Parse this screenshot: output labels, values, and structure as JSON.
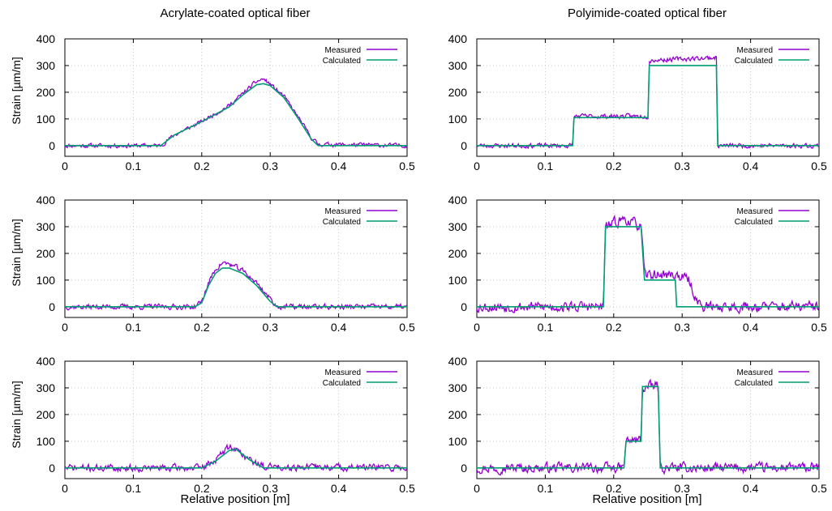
{
  "column_titles": [
    "Acrylate-coated optical fiber",
    "Polyimide-coated optical fiber"
  ],
  "xlabel": "Relative position [m]",
  "ylabel": "Strain [µm/m]",
  "colors": {
    "measured": "#9400d3",
    "calculated": "#009e73",
    "grid": "#c8c8c8"
  },
  "chart_data": [
    {
      "type": "line",
      "panel": "acrylate-1",
      "xlim": [
        0,
        0.5
      ],
      "ylim": [
        -40,
        400
      ],
      "xticks": [
        "0",
        "0.1",
        "0.2",
        "0.3",
        "0.4",
        "0.5"
      ],
      "yticks": [
        "0",
        "100",
        "200",
        "300",
        "400"
      ],
      "grid": true,
      "legend": "top-right",
      "series": [
        {
          "name": "Measured",
          "noise": 12,
          "seed": 11,
          "points": [
            [
              0,
              0
            ],
            [
              0.14,
              0
            ],
            [
              0.16,
              40
            ],
            [
              0.2,
              90
            ],
            [
              0.24,
              150
            ],
            [
              0.26,
              195
            ],
            [
              0.28,
              240
            ],
            [
              0.29,
              250
            ],
            [
              0.3,
              230
            ],
            [
              0.32,
              185
            ],
            [
              0.34,
              110
            ],
            [
              0.36,
              30
            ],
            [
              0.37,
              5
            ],
            [
              0.5,
              0
            ]
          ]
        },
        {
          "name": "Calculated",
          "points": [
            [
              0,
              0
            ],
            [
              0.14,
              0
            ],
            [
              0.16,
              40
            ],
            [
              0.2,
              90
            ],
            [
              0.24,
              145
            ],
            [
              0.26,
              190
            ],
            [
              0.28,
              228
            ],
            [
              0.29,
              232
            ],
            [
              0.3,
              225
            ],
            [
              0.32,
              180
            ],
            [
              0.34,
              105
            ],
            [
              0.36,
              25
            ],
            [
              0.37,
              0
            ],
            [
              0.5,
              0
            ]
          ]
        }
      ]
    },
    {
      "type": "line",
      "panel": "polyimide-1",
      "xlim": [
        0,
        0.5
      ],
      "ylim": [
        -40,
        400
      ],
      "xticks": [
        "0",
        "0.1",
        "0.2",
        "0.3",
        "0.4",
        "0.5"
      ],
      "yticks": [
        "0",
        "100",
        "200",
        "300",
        "400"
      ],
      "grid": true,
      "legend": "top-right",
      "series": [
        {
          "name": "Measured",
          "noise": 13,
          "seed": 23,
          "points": [
            [
              0,
              0
            ],
            [
              0.14,
              0
            ],
            [
              0.142,
              110
            ],
            [
              0.25,
              110
            ],
            [
              0.252,
              320
            ],
            [
              0.35,
              330
            ],
            [
              0.352,
              0
            ],
            [
              0.5,
              0
            ]
          ]
        },
        {
          "name": "Calculated",
          "points": [
            [
              0,
              0
            ],
            [
              0.14,
              0
            ],
            [
              0.142,
              105
            ],
            [
              0.25,
              105
            ],
            [
              0.252,
              300
            ],
            [
              0.35,
              300
            ],
            [
              0.352,
              0
            ],
            [
              0.5,
              0
            ]
          ]
        }
      ]
    },
    {
      "type": "line",
      "panel": "acrylate-2",
      "xlim": [
        0,
        0.5
      ],
      "ylim": [
        -40,
        400
      ],
      "xticks": [
        "0",
        "0.1",
        "0.2",
        "0.3",
        "0.4",
        "0.5"
      ],
      "yticks": [
        "0",
        "100",
        "200",
        "300",
        "400"
      ],
      "grid": true,
      "legend": "top-right",
      "series": [
        {
          "name": "Measured",
          "noise": 15,
          "seed": 37,
          "points": [
            [
              0,
              0
            ],
            [
              0.19,
              0
            ],
            [
              0.2,
              20
            ],
            [
              0.21,
              90
            ],
            [
              0.22,
              140
            ],
            [
              0.23,
              165
            ],
            [
              0.24,
              160
            ],
            [
              0.26,
              135
            ],
            [
              0.28,
              90
            ],
            [
              0.3,
              30
            ],
            [
              0.31,
              0
            ],
            [
              0.5,
              0
            ]
          ]
        },
        {
          "name": "Calculated",
          "points": [
            [
              0,
              0
            ],
            [
              0.19,
              0
            ],
            [
              0.2,
              15
            ],
            [
              0.21,
              80
            ],
            [
              0.22,
              125
            ],
            [
              0.23,
              145
            ],
            [
              0.24,
              145
            ],
            [
              0.26,
              125
            ],
            [
              0.28,
              80
            ],
            [
              0.3,
              20
            ],
            [
              0.31,
              0
            ],
            [
              0.5,
              0
            ]
          ]
        }
      ]
    },
    {
      "type": "line",
      "panel": "polyimide-2",
      "xlim": [
        0,
        0.5
      ],
      "ylim": [
        -40,
        400
      ],
      "xticks": [
        "0",
        "0.1",
        "0.2",
        "0.3",
        "0.4",
        "0.5"
      ],
      "yticks": [
        "0",
        "100",
        "200",
        "300",
        "400"
      ],
      "grid": true,
      "legend": "top-right",
      "series": [
        {
          "name": "Measured",
          "noise": 30,
          "seed": 53,
          "points": [
            [
              0,
              0
            ],
            [
              0.185,
              0
            ],
            [
              0.188,
              300
            ],
            [
              0.215,
              330
            ],
            [
              0.24,
              300
            ],
            [
              0.245,
              120
            ],
            [
              0.29,
              120
            ],
            [
              0.31,
              100
            ],
            [
              0.32,
              30
            ],
            [
              0.33,
              0
            ],
            [
              0.5,
              0
            ]
          ]
        },
        {
          "name": "Calculated",
          "points": [
            [
              0,
              0
            ],
            [
              0.185,
              0
            ],
            [
              0.188,
              300
            ],
            [
              0.24,
              300
            ],
            [
              0.245,
              100
            ],
            [
              0.29,
              100
            ],
            [
              0.292,
              0
            ],
            [
              0.5,
              0
            ]
          ]
        }
      ]
    },
    {
      "type": "line",
      "panel": "acrylate-3",
      "xlim": [
        0,
        0.5
      ],
      "ylim": [
        -40,
        400
      ],
      "xticks": [
        "0",
        "0.1",
        "0.2",
        "0.3",
        "0.4",
        "0.5"
      ],
      "yticks": [
        "0",
        "100",
        "200",
        "300",
        "400"
      ],
      "grid": true,
      "legend": "top-right",
      "series": [
        {
          "name": "Measured",
          "noise": 20,
          "seed": 71,
          "points": [
            [
              0,
              0
            ],
            [
              0.2,
              0
            ],
            [
              0.22,
              30
            ],
            [
              0.24,
              80
            ],
            [
              0.25,
              70
            ],
            [
              0.27,
              30
            ],
            [
              0.29,
              5
            ],
            [
              0.5,
              0
            ]
          ]
        },
        {
          "name": "Calculated",
          "points": [
            [
              0,
              0
            ],
            [
              0.2,
              0
            ],
            [
              0.22,
              25
            ],
            [
              0.24,
              65
            ],
            [
              0.25,
              70
            ],
            [
              0.27,
              30
            ],
            [
              0.29,
              0
            ],
            [
              0.5,
              0
            ]
          ]
        }
      ]
    },
    {
      "type": "line",
      "panel": "polyimide-3",
      "xlim": [
        0,
        0.5
      ],
      "ylim": [
        -40,
        400
      ],
      "xticks": [
        "0",
        "0.1",
        "0.2",
        "0.3",
        "0.4",
        "0.5"
      ],
      "yticks": [
        "0",
        "100",
        "200",
        "300",
        "400"
      ],
      "grid": true,
      "legend": "top-right",
      "series": [
        {
          "name": "Measured",
          "noise": 28,
          "seed": 97,
          "points": [
            [
              0,
              0
            ],
            [
              0.215,
              0
            ],
            [
              0.218,
              100
            ],
            [
              0.24,
              105
            ],
            [
              0.242,
              300
            ],
            [
              0.265,
              310
            ],
            [
              0.268,
              0
            ],
            [
              0.5,
              0
            ]
          ]
        },
        {
          "name": "Calculated",
          "points": [
            [
              0,
              0
            ],
            [
              0.215,
              0
            ],
            [
              0.218,
              100
            ],
            [
              0.24,
              100
            ],
            [
              0.242,
              305
            ],
            [
              0.265,
              305
            ],
            [
              0.268,
              0
            ],
            [
              0.5,
              0
            ]
          ]
        }
      ]
    }
  ]
}
